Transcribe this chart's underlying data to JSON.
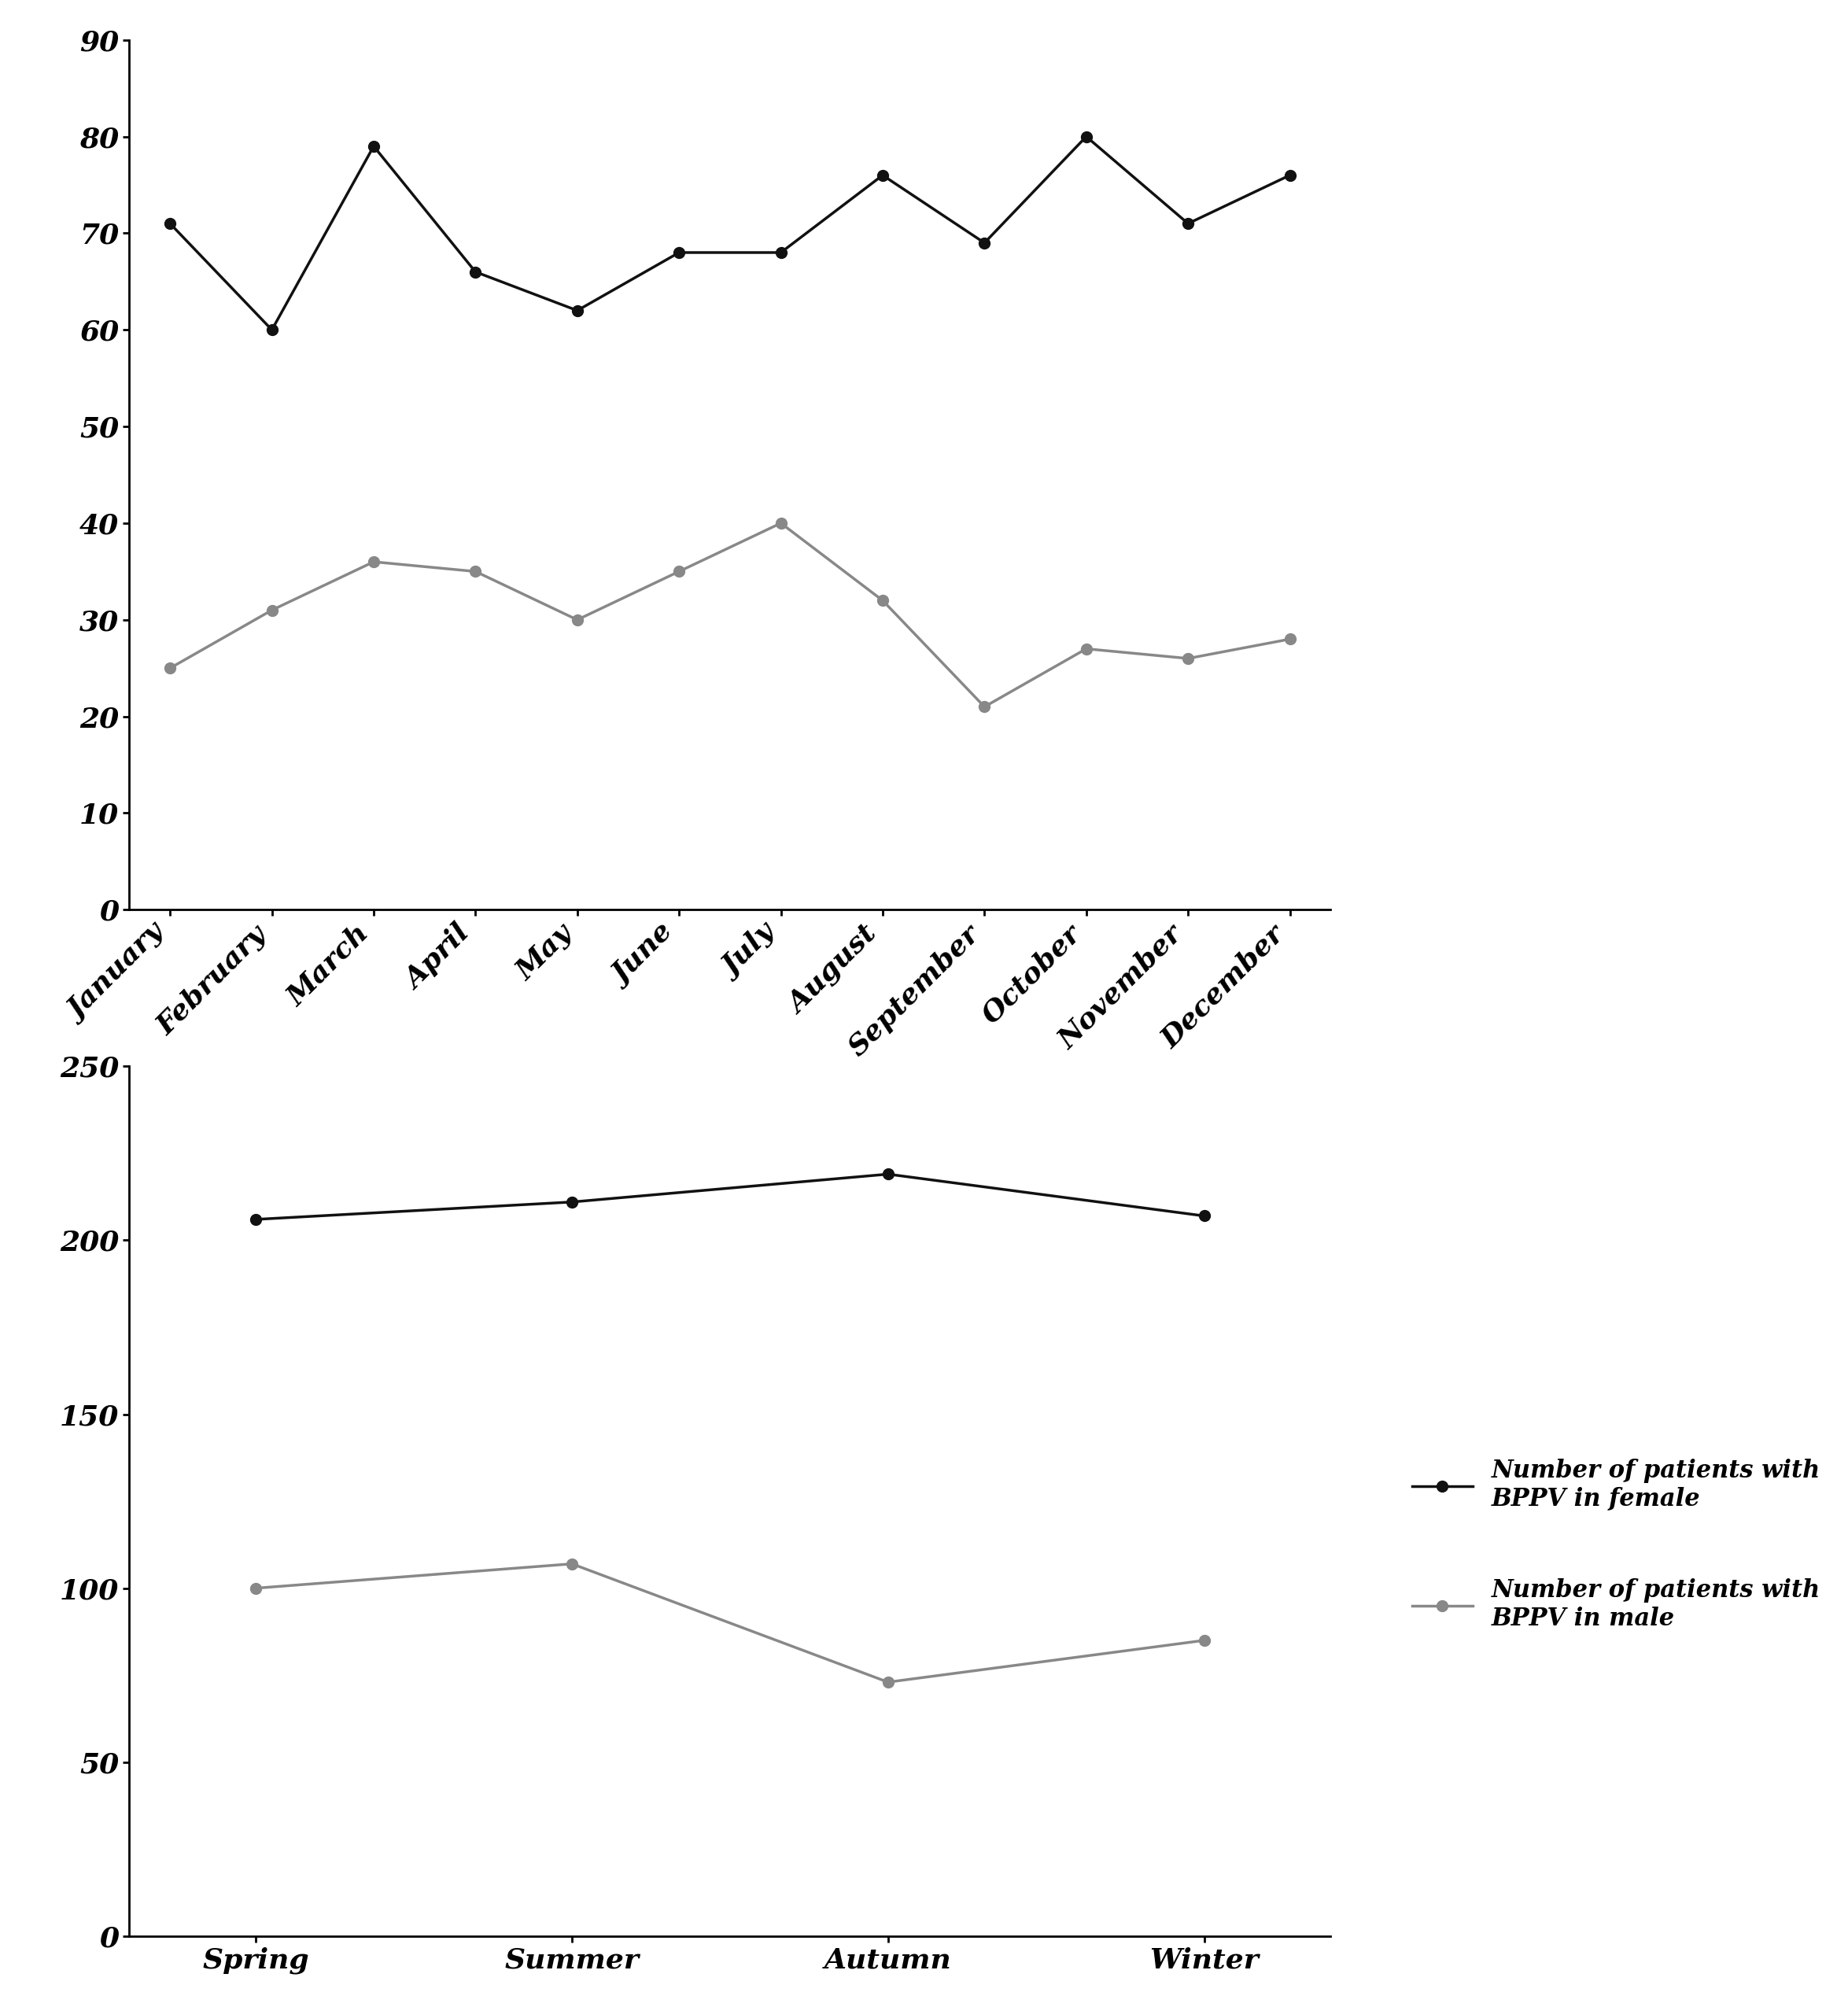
{
  "monthly": {
    "months": [
      "January",
      "February",
      "March",
      "April",
      "May",
      "June",
      "July",
      "August",
      "September",
      "October",
      "November",
      "December"
    ],
    "female": [
      71,
      60,
      79,
      66,
      62,
      68,
      68,
      76,
      69,
      80,
      71,
      76
    ],
    "male": [
      25,
      31,
      36,
      35,
      30,
      35,
      40,
      32,
      21,
      27,
      26,
      28
    ],
    "female_color": "#111111",
    "male_color": "#888888",
    "ylim": [
      0,
      90
    ],
    "yticks": [
      0,
      10,
      20,
      30,
      40,
      50,
      60,
      70,
      80,
      90
    ]
  },
  "seasonal": {
    "seasons": [
      "Spring",
      "Summer",
      "Autumn",
      "Winter"
    ],
    "female": [
      206,
      211,
      219,
      207
    ],
    "male": [
      100,
      107,
      73,
      85
    ],
    "female_color": "#111111",
    "male_color": "#888888",
    "ylim": [
      0,
      250
    ],
    "yticks": [
      0,
      50,
      100,
      150,
      200,
      250
    ],
    "legend_female": "Number of patients with\nBPPV in female",
    "legend_male": "Number of patients with\nBPPV in male"
  },
  "marker": "o",
  "linewidth": 2.5,
  "markersize": 10,
  "tick_fontsize": 26,
  "legend_fontsize": 22
}
